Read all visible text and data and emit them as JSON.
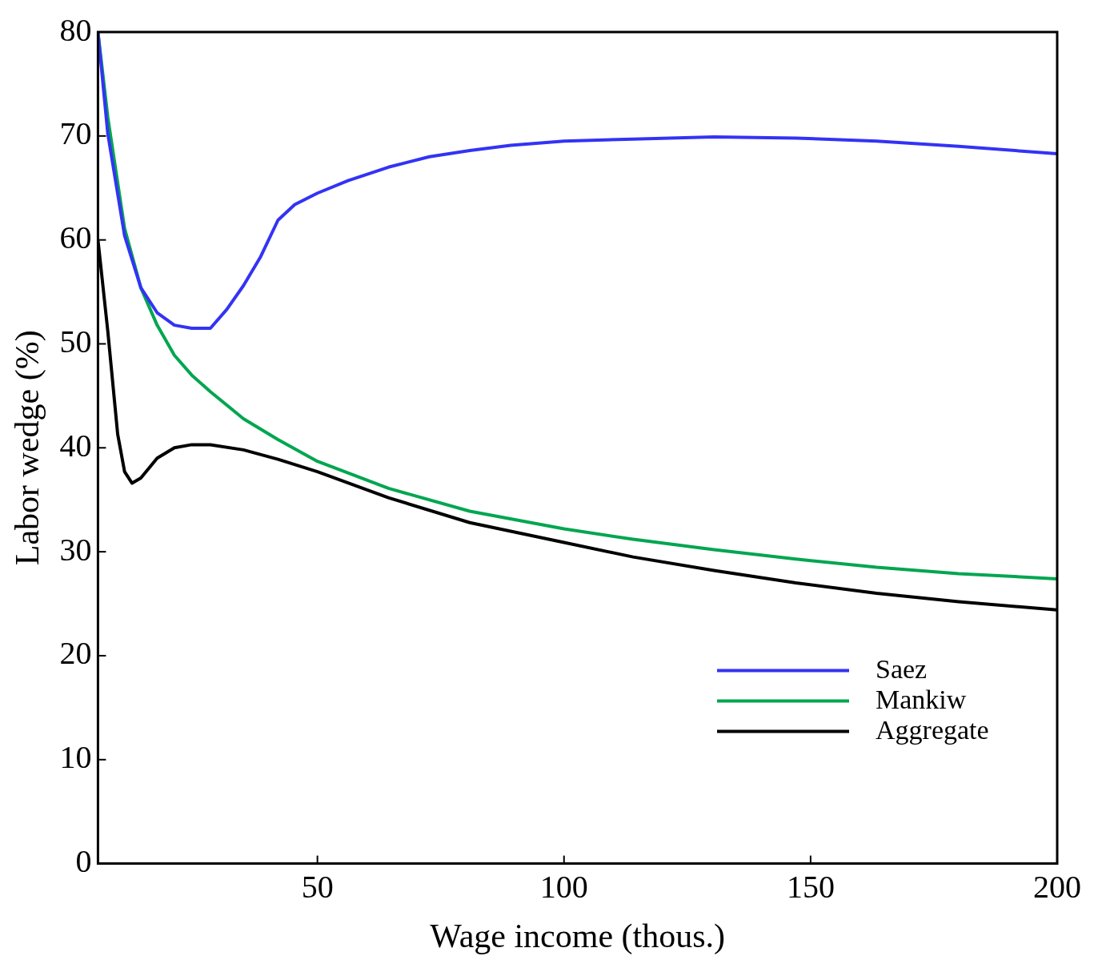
{
  "chart_data": {
    "type": "line",
    "xlabel": "Wage income (thous.)",
    "ylabel": "Labor wedge (%)",
    "xlim": [
      5.5,
      200
    ],
    "xticks": [
      50,
      100,
      150,
      200
    ],
    "ylim": [
      0,
      80
    ],
    "yticks": [
      0,
      10,
      20,
      30,
      40,
      50,
      60,
      70,
      80
    ],
    "grid": false,
    "legend": "bottom right",
    "marker": "none",
    "line_style": "solid",
    "series": [
      {
        "name": "Saez",
        "color": "#3333f5",
        "x": [
          5.5,
          7.5,
          10.9,
          14.2,
          17.5,
          21,
          24.5,
          28.3,
          31.6,
          35,
          38.5,
          42,
          45.4,
          50,
          56.2,
          64.4,
          72.7,
          80.9,
          89.2,
          100,
          114,
          130.4,
          147,
          163.4,
          180,
          200
        ],
        "values": [
          80,
          70.2,
          60.4,
          55.4,
          53.0,
          51.8,
          51.5,
          51.5,
          53.3,
          55.6,
          58.4,
          61.9,
          63.4,
          64.5,
          65.7,
          67.0,
          68.0,
          68.6,
          69.1,
          69.5,
          69.7,
          69.9,
          69.8,
          69.5,
          69.0,
          68.3
        ]
      },
      {
        "name": "Mankiw",
        "color": "#00a650",
        "x": [
          5.5,
          7.5,
          10.9,
          14.2,
          17.5,
          21,
          24.5,
          28.3,
          35,
          42,
          50,
          64.4,
          80.9,
          100,
          114,
          130.4,
          147,
          163.4,
          180,
          200
        ],
        "values": [
          80,
          71.8,
          61.1,
          55.4,
          51.8,
          48.9,
          47.0,
          45.4,
          42.8,
          40.8,
          38.7,
          36.1,
          33.9,
          32.2,
          31.2,
          30.2,
          29.3,
          28.5,
          27.9,
          27.4
        ]
      },
      {
        "name": "Aggregate",
        "color": "#000000",
        "x": [
          5.5,
          7.5,
          9.5,
          10.9,
          12.4,
          14.2,
          17.5,
          21,
          24.5,
          28.3,
          35,
          42,
          50,
          64.4,
          80.9,
          100,
          114,
          130.4,
          147,
          163.4,
          180,
          200
        ],
        "values": [
          60.0,
          51.2,
          41.3,
          37.7,
          36.6,
          37.1,
          39.0,
          40.0,
          40.3,
          40.3,
          39.8,
          38.9,
          37.7,
          35.2,
          32.8,
          30.9,
          29.5,
          28.2,
          27.0,
          26.0,
          25.2,
          24.4
        ]
      }
    ]
  }
}
